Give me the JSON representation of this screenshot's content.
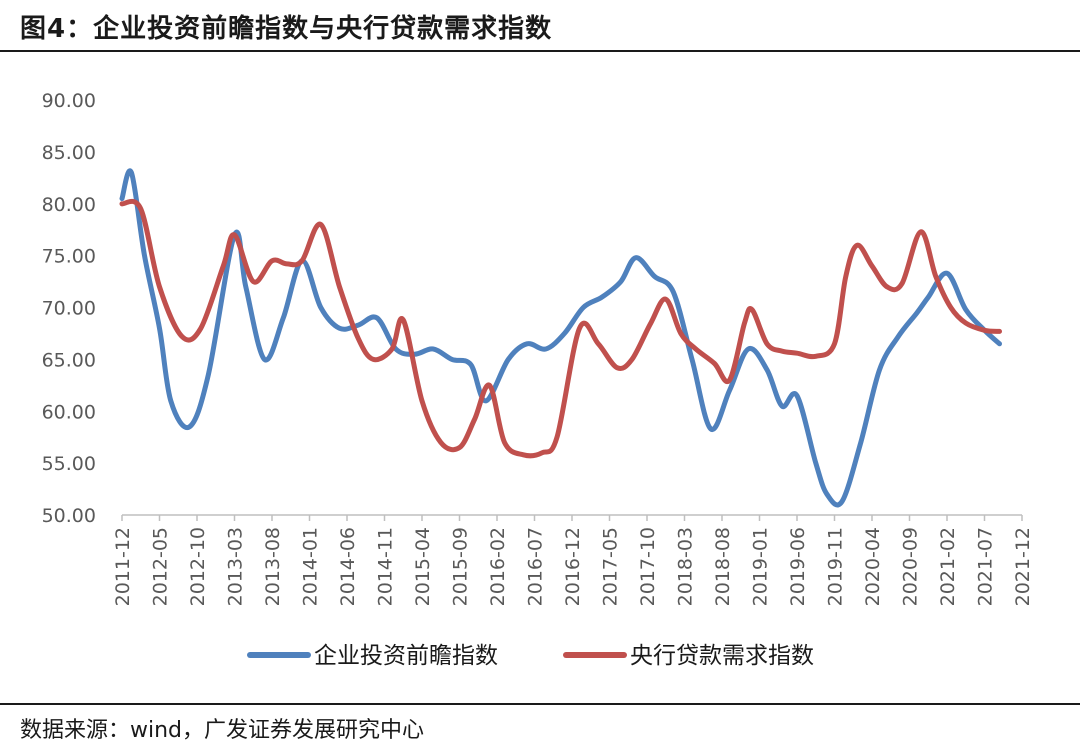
{
  "header": {
    "title": "图4：企业投资前瞻指数与央行贷款需求指数"
  },
  "footer": {
    "source": "数据来源：wind，广发证券发展研究中心"
  },
  "chart_data": {
    "type": "line",
    "title": "企业投资前瞻指数与央行贷款需求指数",
    "ylim": [
      50,
      90
    ],
    "yticks": [
      "90.00",
      "85.00",
      "80.00",
      "75.00",
      "70.00",
      "65.00",
      "60.00",
      "55.00",
      "50.00"
    ],
    "xticks": [
      "2011-12",
      "2012-05",
      "2012-10",
      "2013-03",
      "2013-08",
      "2014-01",
      "2014-06",
      "2014-11",
      "2015-04",
      "2015-09",
      "2016-02",
      "2016-07",
      "2016-12",
      "2017-05",
      "2017-10",
      "2018-03",
      "2018-08",
      "2019-01",
      "2019-06",
      "2019-11",
      "2020-04",
      "2020-09",
      "2021-02",
      "2021-07",
      "2021-12"
    ],
    "legend_position": "bottom",
    "series": [
      {
        "name": "企业投资前瞻指数",
        "color": "#4F81BD",
        "points": [
          [
            0,
            80.5
          ],
          [
            0.25,
            83
          ],
          [
            0.6,
            75
          ],
          [
            1,
            68
          ],
          [
            1.3,
            61
          ],
          [
            1.8,
            58.5
          ],
          [
            2.3,
            63.5
          ],
          [
            3,
            77
          ],
          [
            3.3,
            72
          ],
          [
            3.8,
            65
          ],
          [
            4.3,
            69
          ],
          [
            4.8,
            74.5
          ],
          [
            5.3,
            70
          ],
          [
            5.8,
            68
          ],
          [
            6.3,
            68.3
          ],
          [
            6.8,
            69
          ],
          [
            7.3,
            66
          ],
          [
            7.8,
            65.5
          ],
          [
            8.3,
            66
          ],
          [
            8.8,
            65
          ],
          [
            9.3,
            64.5
          ],
          [
            9.7,
            61
          ],
          [
            10.3,
            65
          ],
          [
            10.8,
            66.5
          ],
          [
            11.3,
            66
          ],
          [
            11.8,
            67.5
          ],
          [
            12.3,
            70
          ],
          [
            12.8,
            71
          ],
          [
            13.3,
            72.5
          ],
          [
            13.7,
            74.8
          ],
          [
            14.2,
            73
          ],
          [
            14.7,
            71.5
          ],
          [
            15.2,
            65
          ],
          [
            15.7,
            58.3
          ],
          [
            16.2,
            62
          ],
          [
            16.7,
            66
          ],
          [
            17.2,
            64
          ],
          [
            17.6,
            60.5
          ],
          [
            18,
            61.5
          ],
          [
            18.5,
            55
          ],
          [
            18.8,
            52
          ],
          [
            19.2,
            51.3
          ],
          [
            19.7,
            57
          ],
          [
            20.2,
            64
          ],
          [
            20.7,
            67.2
          ],
          [
            21.2,
            69.5
          ],
          [
            21.5,
            71
          ],
          [
            22,
            73.3
          ],
          [
            22.5,
            69.8
          ],
          [
            23,
            67.8
          ],
          [
            23.4,
            66.5
          ]
        ]
      },
      {
        "name": "央行贷款需求指数",
        "color": "#C0504D",
        "points": [
          [
            0,
            80
          ],
          [
            0.5,
            79.5
          ],
          [
            1,
            72
          ],
          [
            1.6,
            67.2
          ],
          [
            2.1,
            68
          ],
          [
            2.7,
            74
          ],
          [
            3,
            77
          ],
          [
            3.5,
            72.5
          ],
          [
            4,
            74.5
          ],
          [
            4.4,
            74.2
          ],
          [
            4.8,
            74.5
          ],
          [
            5.3,
            78
          ],
          [
            5.8,
            72
          ],
          [
            6.3,
            67
          ],
          [
            6.7,
            65
          ],
          [
            7.2,
            66
          ],
          [
            7.5,
            68.8
          ],
          [
            8,
            61
          ],
          [
            8.5,
            57
          ],
          [
            9,
            56.5
          ],
          [
            9.4,
            59.2
          ],
          [
            9.8,
            62.5
          ],
          [
            10.2,
            57
          ],
          [
            10.7,
            55.8
          ],
          [
            11.2,
            56
          ],
          [
            11.6,
            57.5
          ],
          [
            12.2,
            68
          ],
          [
            12.7,
            66.5
          ],
          [
            13.2,
            64.2
          ],
          [
            13.6,
            65
          ],
          [
            14.1,
            68.5
          ],
          [
            14.5,
            70.8
          ],
          [
            14.9,
            67.5
          ],
          [
            15.3,
            66
          ],
          [
            15.8,
            64.6
          ],
          [
            16.2,
            63
          ],
          [
            16.6,
            68.5
          ],
          [
            16.8,
            69.8
          ],
          [
            17.2,
            66.5
          ],
          [
            17.6,
            65.8
          ],
          [
            18,
            65.6
          ],
          [
            18.5,
            65.3
          ],
          [
            19,
            66.5
          ],
          [
            19.3,
            73
          ],
          [
            19.6,
            76
          ],
          [
            20,
            74
          ],
          [
            20.4,
            72
          ],
          [
            20.8,
            72.3
          ],
          [
            21.3,
            77.3
          ],
          [
            21.7,
            73
          ],
          [
            22.1,
            70
          ],
          [
            22.5,
            68.5
          ],
          [
            23,
            67.8
          ],
          [
            23.4,
            67.7
          ]
        ]
      }
    ]
  }
}
